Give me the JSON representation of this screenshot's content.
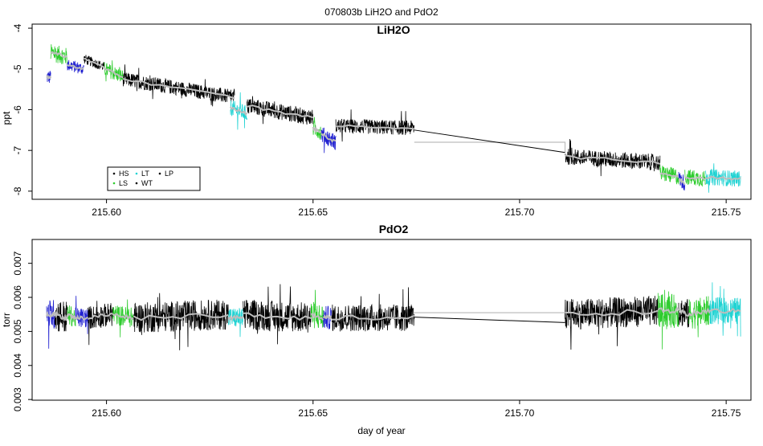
{
  "suptitle": "070803b   LiH2O and PdO2",
  "colors": {
    "HS": "#000000",
    "LS": "#2ecc2e",
    "LT": "#22d3d3",
    "WT": "#000000",
    "LP": "#000000",
    "blue_segments": "#1f1fd0",
    "smooth": "#bdbdbd",
    "gap_line": "#000000",
    "gap_box": "#bdbdbd"
  },
  "chart_data": [
    {
      "type": "line",
      "title": "LiH2O",
      "xlabel": "",
      "ylabel": "ppt",
      "xlim": [
        215.582,
        215.756
      ],
      "ylim": [
        -8.2,
        -3.9
      ],
      "xticks": [
        "215.60",
        "215.65",
        "215.70",
        "215.75"
      ],
      "xtick_values": [
        215.6,
        215.65,
        215.7,
        215.75
      ],
      "yticks": [
        "-4",
        "-5",
        "-6",
        "-7",
        "-8"
      ],
      "ytick_values": [
        -4,
        -5,
        -6,
        -7,
        -8
      ],
      "legend": {
        "placement": "bottom-left",
        "entries": [
          {
            "label": "HS",
            "color": "#000000"
          },
          {
            "label": "LS",
            "color": "#2ecc2e"
          },
          {
            "label": "LT",
            "color": "#22d3d3"
          },
          {
            "label": "WT",
            "color": "#000000"
          },
          {
            "label": "LP",
            "color": "#000000"
          }
        ]
      },
      "segments": [
        {
          "x0": 215.5855,
          "x1": 215.5865,
          "y0": -5.2,
          "y1": -5.2,
          "noise": 0.18,
          "color": "#1f1fd0"
        },
        {
          "x0": 215.5865,
          "x1": 215.5905,
          "y0": -4.6,
          "y1": -4.7,
          "noise": 0.22,
          "color": "#2ecc2e"
        },
        {
          "x0": 215.5905,
          "x1": 215.5945,
          "y0": -4.9,
          "y1": -5.0,
          "noise": 0.15,
          "color": "#1f1fd0"
        },
        {
          "x0": 215.5945,
          "x1": 215.5995,
          "y0": -4.75,
          "y1": -4.95,
          "noise": 0.12,
          "color": "#000000"
        },
        {
          "x0": 215.5995,
          "x1": 215.604,
          "y0": -5.0,
          "y1": -5.2,
          "noise": 0.18,
          "color": "#2ecc2e"
        },
        {
          "x0": 215.604,
          "x1": 215.631,
          "y0": -5.25,
          "y1": -5.7,
          "noise": 0.18,
          "color": "#000000"
        },
        {
          "x0": 215.63,
          "x1": 215.634,
          "y0": -5.95,
          "y1": -6.1,
          "noise": 0.2,
          "color": "#22d3d3"
        },
        {
          "x0": 215.634,
          "x1": 215.65,
          "y0": -5.9,
          "y1": -6.2,
          "noise": 0.2,
          "color": "#000000"
        },
        {
          "x0": 215.65,
          "x1": 215.652,
          "y0": -6.45,
          "y1": -6.55,
          "noise": 0.2,
          "color": "#2ecc2e"
        },
        {
          "x0": 215.652,
          "x1": 215.6555,
          "y0": -6.6,
          "y1": -6.8,
          "noise": 0.2,
          "color": "#1f1fd0"
        },
        {
          "x0": 215.6555,
          "x1": 215.6745,
          "y0": -6.4,
          "y1": -6.45,
          "noise": 0.18,
          "color": "#000000"
        },
        {
          "x0": 215.711,
          "x1": 215.734,
          "y0": -7.15,
          "y1": -7.3,
          "noise": 0.2,
          "color": "#000000"
        },
        {
          "x0": 215.734,
          "x1": 215.7385,
          "y0": -7.55,
          "y1": -7.65,
          "noise": 0.2,
          "color": "#2ecc2e"
        },
        {
          "x0": 215.7385,
          "x1": 215.74,
          "y0": -7.7,
          "y1": -7.8,
          "noise": 0.2,
          "color": "#1f1fd0"
        },
        {
          "x0": 215.74,
          "x1": 215.745,
          "y0": -7.65,
          "y1": -7.7,
          "noise": 0.2,
          "color": "#2ecc2e"
        },
        {
          "x0": 215.745,
          "x1": 215.7535,
          "y0": -7.65,
          "y1": -7.7,
          "noise": 0.2,
          "color": "#22d3d3"
        }
      ],
      "gap": {
        "x0": 215.6745,
        "x1": 215.711,
        "y0": -6.5,
        "y1": -7.05,
        "box_y": -6.8
      }
    },
    {
      "type": "line",
      "title": "PdO2",
      "xlabel": "day of year",
      "ylabel": "torr",
      "xlim": [
        215.582,
        215.756
      ],
      "ylim": [
        0.00298,
        0.0077
      ],
      "xticks": [
        "215.60",
        "215.65",
        "215.70",
        "215.75"
      ],
      "xtick_values": [
        215.6,
        215.65,
        215.7,
        215.75
      ],
      "yticks": [
        "0.003",
        "0.004",
        "0.005",
        "0.006",
        "0.007"
      ],
      "ytick_values": [
        0.003,
        0.004,
        0.005,
        0.006,
        0.007
      ],
      "segments": [
        {
          "x0": 215.5855,
          "x1": 215.5875,
          "y0": 0.0055,
          "y1": 0.0055,
          "noise": 0.00045,
          "color": "#1f1fd0"
        },
        {
          "x0": 215.5875,
          "x1": 215.5905,
          "y0": 0.0055,
          "y1": 0.0054,
          "noise": 0.0005,
          "color": "#000000"
        },
        {
          "x0": 215.5905,
          "x1": 215.5925,
          "y0": 0.0055,
          "y1": 0.0054,
          "noise": 0.0003,
          "color": "#2ecc2e"
        },
        {
          "x0": 215.5925,
          "x1": 215.5955,
          "y0": 0.0054,
          "y1": 0.0054,
          "noise": 0.0003,
          "color": "#1f1fd0"
        },
        {
          "x0": 215.5955,
          "x1": 215.6015,
          "y0": 0.0054,
          "y1": 0.0055,
          "noise": 0.00035,
          "color": "#000000"
        },
        {
          "x0": 215.6015,
          "x1": 215.6065,
          "y0": 0.0055,
          "y1": 0.0054,
          "noise": 0.0003,
          "color": "#2ecc2e"
        },
        {
          "x0": 215.6065,
          "x1": 215.6295,
          "y0": 0.0054,
          "y1": 0.0055,
          "noise": 0.00045,
          "color": "#000000"
        },
        {
          "x0": 215.6295,
          "x1": 215.633,
          "y0": 0.0054,
          "y1": 0.0054,
          "noise": 0.0003,
          "color": "#22d3d3"
        },
        {
          "x0": 215.633,
          "x1": 215.6495,
          "y0": 0.0055,
          "y1": 0.0054,
          "noise": 0.00045,
          "color": "#000000"
        },
        {
          "x0": 215.6495,
          "x1": 215.6525,
          "y0": 0.0055,
          "y1": 0.0054,
          "noise": 0.0004,
          "color": "#2ecc2e"
        },
        {
          "x0": 215.6525,
          "x1": 215.6545,
          "y0": 0.0054,
          "y1": 0.0054,
          "noise": 0.00035,
          "color": "#1f1fd0"
        },
        {
          "x0": 215.6545,
          "x1": 215.6745,
          "y0": 0.0054,
          "y1": 0.0054,
          "noise": 0.0004,
          "color": "#000000"
        },
        {
          "x0": 215.711,
          "x1": 215.7335,
          "y0": 0.0055,
          "y1": 0.0056,
          "noise": 0.00045,
          "color": "#000000"
        },
        {
          "x0": 215.7335,
          "x1": 215.7385,
          "y0": 0.0056,
          "y1": 0.0056,
          "noise": 0.0005,
          "color": "#2ecc2e"
        },
        {
          "x0": 215.7385,
          "x1": 215.741,
          "y0": 0.0056,
          "y1": 0.0055,
          "noise": 0.00045,
          "color": "#000000"
        },
        {
          "x0": 215.741,
          "x1": 215.746,
          "y0": 0.0055,
          "y1": 0.0056,
          "noise": 0.00045,
          "color": "#2ecc2e"
        },
        {
          "x0": 215.746,
          "x1": 215.7535,
          "y0": 0.0056,
          "y1": 0.0056,
          "noise": 0.0004,
          "color": "#22d3d3"
        }
      ],
      "gap": {
        "x0": 215.6745,
        "x1": 215.711,
        "y0": 0.00542,
        "y1": 0.00526,
        "box_y": 0.00555
      }
    }
  ]
}
